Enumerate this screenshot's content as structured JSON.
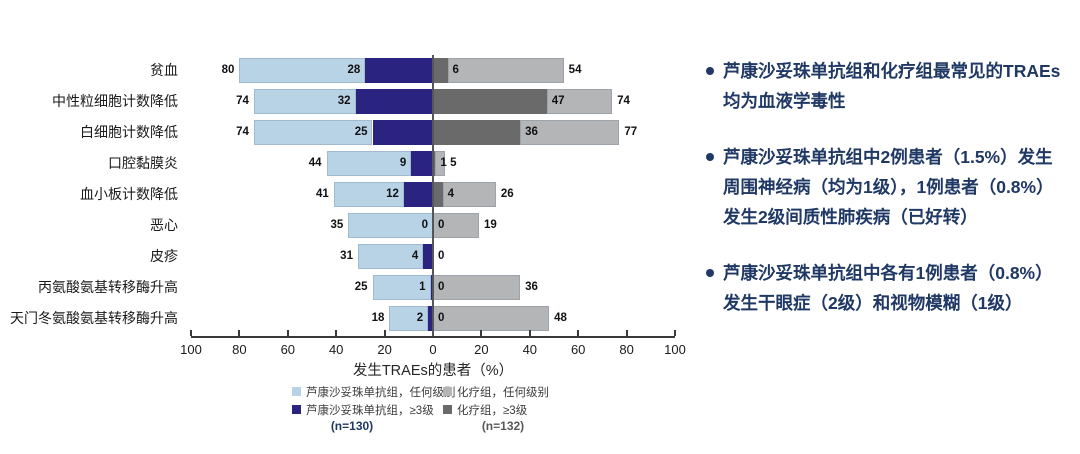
{
  "chart_data": {
    "type": "bar",
    "variant": "diverging-stacked-horizontal-tornado",
    "xlabel": "发生TRAEs的患者（%）",
    "xlim": [
      -100,
      100
    ],
    "tick_step": 20,
    "grid": false,
    "legend_position": "bottom",
    "categories": [
      "贫血",
      "中性粒细胞计数降低",
      "白细胞计数降低",
      "口腔黏膜炎",
      "血小板计数降低",
      "恶心",
      "皮疹",
      "丙氨酸氨基转移酶升高",
      "天门冬氨酸氨基转移酶升高"
    ],
    "series": [
      {
        "name": "芦康沙妥珠单抗组，任何级别",
        "side": "left",
        "color": "#b9d3e6",
        "values": [
          80,
          74,
          74,
          44,
          41,
          35,
          31,
          25,
          18
        ]
      },
      {
        "name": "芦康沙妥珠单抗组，≥3级",
        "side": "left",
        "color": "#2a2480",
        "values": [
          28,
          32,
          25,
          9,
          12,
          0,
          4,
          1,
          2
        ]
      },
      {
        "name": "化疗组，≥3级",
        "side": "right",
        "color": "#6a6a6a",
        "values": [
          6,
          47,
          36,
          1,
          4,
          0,
          0,
          0,
          0
        ]
      },
      {
        "name": "化疗组，任何级别",
        "side": "right",
        "color": "#b3b5b7",
        "values": [
          54,
          74,
          77,
          5,
          26,
          19,
          0,
          36,
          48
        ]
      }
    ],
    "legend": {
      "row1": [
        {
          "label": "芦康沙妥珠单抗组，任何级别",
          "color": "#b9d3e6"
        },
        {
          "label": "化疗组，任何级别",
          "color": "#b3b5b7"
        }
      ],
      "row2": [
        {
          "label": "芦康沙妥珠单抗组，≥3级",
          "color": "#2a2480"
        },
        {
          "label": "化疗组，≥3级",
          "color": "#6a6a6a"
        }
      ],
      "n_left": {
        "text": "(n=130)",
        "color": "#203864"
      },
      "n_right": {
        "text": "(n=132)",
        "color": "#595959"
      }
    },
    "axis_color": "#3a3a3a",
    "zero_line_color": "#55565a",
    "value_label_color": "#111111"
  },
  "notes": {
    "text_color": "#1f3864",
    "bullets": [
      "芦康沙妥珠单抗组和化疗组最常见的TRAEs均为血液学毒性",
      "芦康沙妥珠单抗组中2例患者（1.5%）发生周围神经病（均为1级），1例患者（0.8%）发生2级间质性肺疾病（已好转）",
      "芦康沙妥珠单抗组中各有1例患者（0.8%）发生干眼症（2级）和视物模糊（1级）"
    ]
  }
}
